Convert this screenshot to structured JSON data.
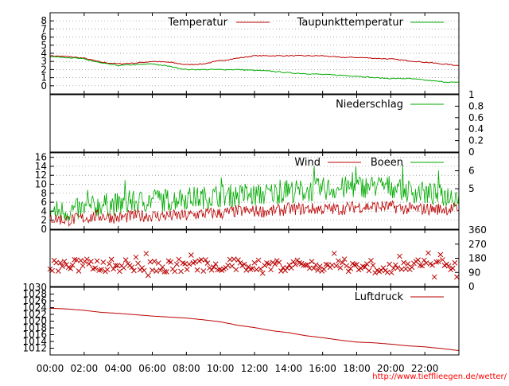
{
  "chart_data": [
    {
      "type": "line",
      "panel": "temperature",
      "title": "",
      "xlabel": "",
      "ylabel": "",
      "ylim": [
        -1,
        9
      ],
      "yticks": [
        "8",
        "7",
        "6",
        "5",
        "4",
        "3",
        "2",
        "1",
        "0"
      ],
      "ytick_values": [
        8,
        7,
        6,
        5,
        4,
        3,
        2,
        1,
        0
      ],
      "grid": true,
      "legend_placement": "top-right",
      "x_hours": [
        0,
        1,
        2,
        3,
        4,
        5,
        6,
        7,
        8,
        9,
        10,
        11,
        12,
        13,
        14,
        15,
        16,
        17,
        18,
        19,
        20,
        21,
        22,
        23,
        24
      ],
      "series": [
        {
          "name": "Temperatur",
          "color": "#bb0000",
          "values": [
            3.7,
            3.6,
            3.4,
            2.9,
            2.7,
            2.8,
            3.0,
            2.9,
            2.6,
            2.7,
            3.1,
            3.4,
            3.7,
            3.7,
            3.7,
            3.7,
            3.7,
            3.5,
            3.5,
            3.4,
            3.3,
            3.1,
            2.9,
            2.7,
            2.5
          ]
        },
        {
          "name": "Taupunkttemperatur",
          "color": "#00aa00",
          "values": [
            3.6,
            3.5,
            3.3,
            2.8,
            2.5,
            2.6,
            2.7,
            2.4,
            2.0,
            2.0,
            2.0,
            2.0,
            1.9,
            1.8,
            1.6,
            1.5,
            1.4,
            1.3,
            1.2,
            1.0,
            0.9,
            0.9,
            0.7,
            0.5,
            0.4
          ]
        }
      ]
    },
    {
      "type": "line",
      "panel": "precipitation",
      "ylim": [
        0,
        1
      ],
      "yticks": [
        "1",
        "0.8",
        "0.6",
        "0.4",
        "0.2",
        "0"
      ],
      "ytick_values": [
        1,
        0.8,
        0.6,
        0.4,
        0.2,
        0
      ],
      "yaxis_side": "right",
      "legend_placement": "top-right",
      "series": [
        {
          "name": "Niederschlag",
          "color": "#00aa00",
          "values": [
            0,
            0,
            0,
            0,
            0,
            0,
            0,
            0,
            0,
            0,
            0,
            0,
            0,
            0,
            0,
            0,
            0,
            0,
            0,
            0,
            0,
            0,
            0,
            0,
            0
          ]
        }
      ]
    },
    {
      "type": "line",
      "panel": "wind",
      "ylim": [
        0,
        17
      ],
      "yticks": [
        "16",
        "14",
        "12",
        "10",
        "8",
        "6",
        "4",
        "2",
        "0"
      ],
      "ytick_values": [
        16,
        14,
        12,
        10,
        8,
        6,
        4,
        2,
        0
      ],
      "right_yticks": [
        "6",
        "5"
      ],
      "right_ytick_values": [
        13,
        9
      ],
      "grid": true,
      "legend_placement": "top-right",
      "x_hours": [
        0,
        1,
        2,
        3,
        4,
        5,
        6,
        7,
        8,
        9,
        10,
        11,
        12,
        13,
        14,
        15,
        16,
        17,
        18,
        19,
        20,
        21,
        22,
        23,
        24
      ],
      "series": [
        {
          "name": "Wind",
          "color": "#bb0000",
          "values": [
            2.5,
            2,
            2.5,
            3,
            2.5,
            3,
            3,
            3,
            3,
            3.5,
            3.5,
            4,
            4,
            4,
            4.5,
            4.5,
            4.5,
            4.5,
            5,
            5,
            5,
            4.5,
            4.5,
            4.5,
            4.5
          ]
        },
        {
          "name": "Boeen",
          "color": "#00aa00",
          "values": [
            4,
            4,
            4.5,
            5.5,
            5.5,
            6,
            6.5,
            6.5,
            7,
            7,
            7.5,
            7.5,
            7.5,
            8,
            8.5,
            8.5,
            9,
            9,
            9.5,
            9.5,
            9.5,
            8.5,
            8,
            7.5,
            7.5
          ]
        }
      ]
    },
    {
      "type": "scatter",
      "panel": "wind-direction",
      "ylim": [
        0,
        360
      ],
      "yticks": [
        "360",
        "270",
        "180",
        "90",
        "0"
      ],
      "ytick_values": [
        360,
        270,
        180,
        90,
        0
      ],
      "yaxis_side": "right",
      "marker": "x",
      "color": "#bb0000",
      "typical_range": [
        60,
        220
      ],
      "typical_center": 135
    },
    {
      "type": "line",
      "panel": "pressure",
      "ylim": [
        1010,
        1030
      ],
      "yticks": [
        "1030",
        "1028",
        "1026",
        "1024",
        "1022",
        "1020",
        "1018",
        "1016",
        "1014",
        "1012"
      ],
      "ytick_values": [
        1030,
        1028,
        1026,
        1024,
        1022,
        1020,
        1018,
        1016,
        1014,
        1012
      ],
      "legend_placement": "top-right",
      "x_hours": [
        0,
        1,
        2,
        3,
        4,
        5,
        6,
        7,
        8,
        9,
        10,
        11,
        12,
        13,
        14,
        15,
        16,
        17,
        18,
        19,
        20,
        21,
        22,
        23,
        24
      ],
      "series": [
        {
          "name": "Luftdruck",
          "color": "#bb0000",
          "values": [
            1023.8,
            1023.6,
            1023.2,
            1022.6,
            1022.3,
            1021.9,
            1021.5,
            1021.2,
            1020.9,
            1020.4,
            1019.8,
            1018.8,
            1018.1,
            1017.2,
            1016.6,
            1015.7,
            1015.1,
            1014.4,
            1013.8,
            1013.6,
            1013.2,
            1012.7,
            1012.4,
            1011.9,
            1011.3
          ]
        }
      ]
    }
  ],
  "x_axis": {
    "labels": [
      "00:00",
      "02:00",
      "04:00",
      "06:00",
      "08:00",
      "10:00",
      "12:00",
      "14:00",
      "16:00",
      "18:00",
      "20:00",
      "22:00"
    ],
    "range_hours": [
      0,
      24
    ]
  },
  "credit": "http://www.tiefflieegen.de/wetter/"
}
